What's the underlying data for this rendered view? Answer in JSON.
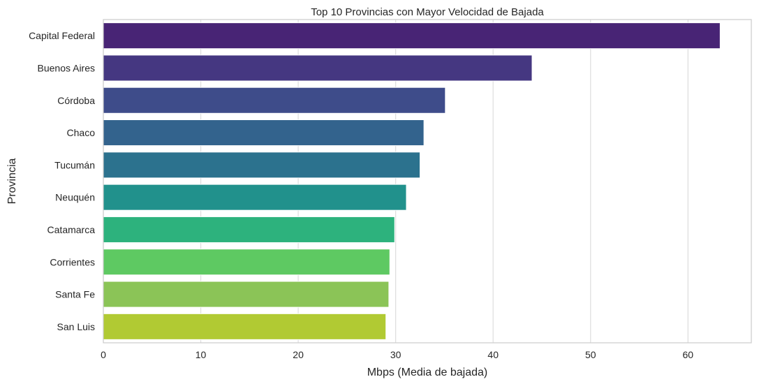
{
  "chart_data": {
    "type": "bar",
    "orientation": "horizontal",
    "title": "Top 10 Provincias con Mayor Velocidad de Bajada",
    "xlabel": "Mbps (Media de bajada)",
    "ylabel": "Provincia",
    "xlim": [
      0,
      66.5
    ],
    "xticks": [
      0,
      10,
      20,
      30,
      40,
      50,
      60
    ],
    "grid": true,
    "categories": [
      "Capital Federal",
      "Buenos Aires",
      "Córdoba",
      "Chaco",
      "Tucumán",
      "Neuquén",
      "Catamarca",
      "Corrientes",
      "Santa Fe",
      "San Luis"
    ],
    "values": [
      63.3,
      44.0,
      35.1,
      32.9,
      32.5,
      31.1,
      29.9,
      29.4,
      29.3,
      29.0
    ],
    "colors": [
      "#482475",
      "#453781",
      "#3e4c8a",
      "#33638d",
      "#2c728e",
      "#21918c",
      "#2db27d",
      "#5ec962",
      "#8bc457",
      "#b1ca33"
    ]
  }
}
